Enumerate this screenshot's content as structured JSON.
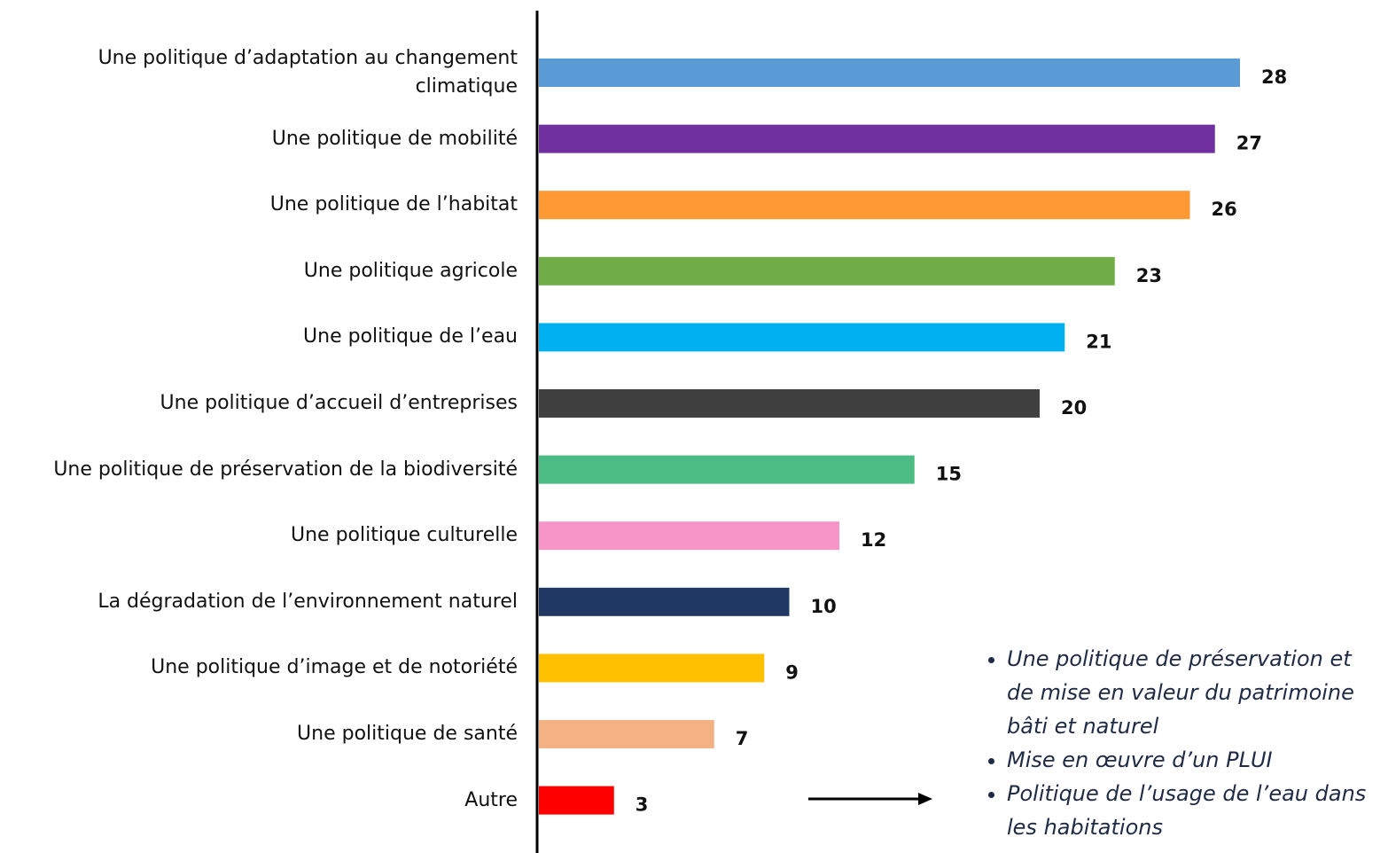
{
  "chart_data": {
    "type": "hbar",
    "categories": [
      "Une politique d’adaptation au changement climatique",
      "Une politique de mobilité",
      "Une politique de l’habitat",
      "Une politique agricole",
      "Une politique de l’eau",
      "Une politique d’accueil d’entreprises",
      "Une politique de préservation de la biodiversité",
      "Une politique culturelle",
      "La dégradation de l’environnement naturel",
      "Une politique d’image et de notoriété",
      "Une politique de santé",
      "Autre"
    ],
    "values": [
      28,
      27,
      26,
      23,
      21,
      20,
      15,
      12,
      10,
      9,
      7,
      3
    ],
    "colors": [
      "#5b9bd5",
      "#7030a0",
      "#ff9933",
      "#70ad47",
      "#00b0f0",
      "#404040",
      "#4cbb84",
      "#f794c8",
      "#203864",
      "#ffc000",
      "#f4b183",
      "#ff0000"
    ],
    "annotations": [
      "Une politique de préservation et de mise en valeur du patrimoine bâti et naturel",
      "Mise en œuvre d’un PLUI",
      "Politique de l’usage de l’eau dans les habitations"
    ]
  }
}
